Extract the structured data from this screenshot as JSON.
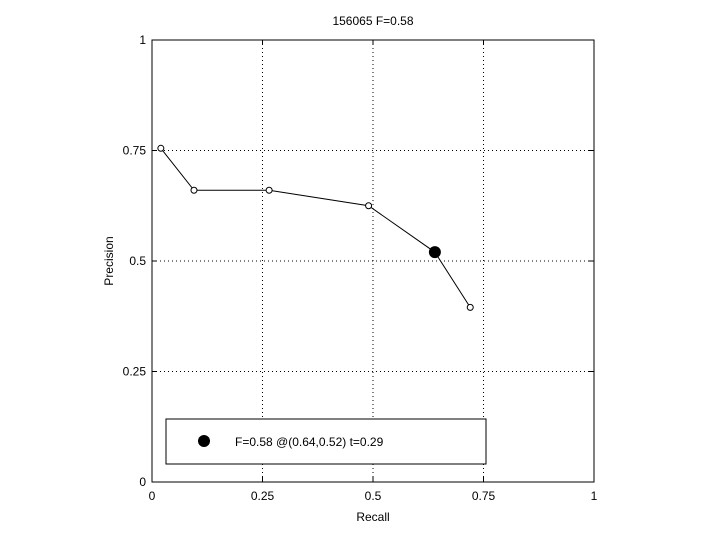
{
  "chart_data": {
    "type": "line",
    "title": "156065 F=0.58",
    "xlabel": "Recall",
    "ylabel": "Precision",
    "xlim": [
      0,
      1
    ],
    "ylim": [
      0,
      1
    ],
    "xticks": [
      0,
      0.25,
      0.5,
      0.75,
      1
    ],
    "yticks": [
      0,
      0.25,
      0.5,
      0.75,
      1
    ],
    "xtick_labels": [
      "0",
      "0.25",
      "0.5",
      "0.75",
      "1"
    ],
    "ytick_labels": [
      "0",
      "0.25",
      "0.5",
      "0.75",
      "1"
    ],
    "grid": true,
    "series": [
      {
        "x": [
          0.02,
          0.095,
          0.265,
          0.49,
          0.64,
          0.72
        ],
        "y": [
          0.755,
          0.66,
          0.66,
          0.625,
          0.52,
          0.395
        ]
      }
    ],
    "highlight": {
      "x": 0.64,
      "y": 0.52
    },
    "legend": {
      "position": "bottom-left",
      "label": "F=0.58 @(0.64,0.52) t=0.29"
    },
    "colors": {
      "line": "#000000",
      "grid": "#000000",
      "background": "#ffffff"
    }
  }
}
